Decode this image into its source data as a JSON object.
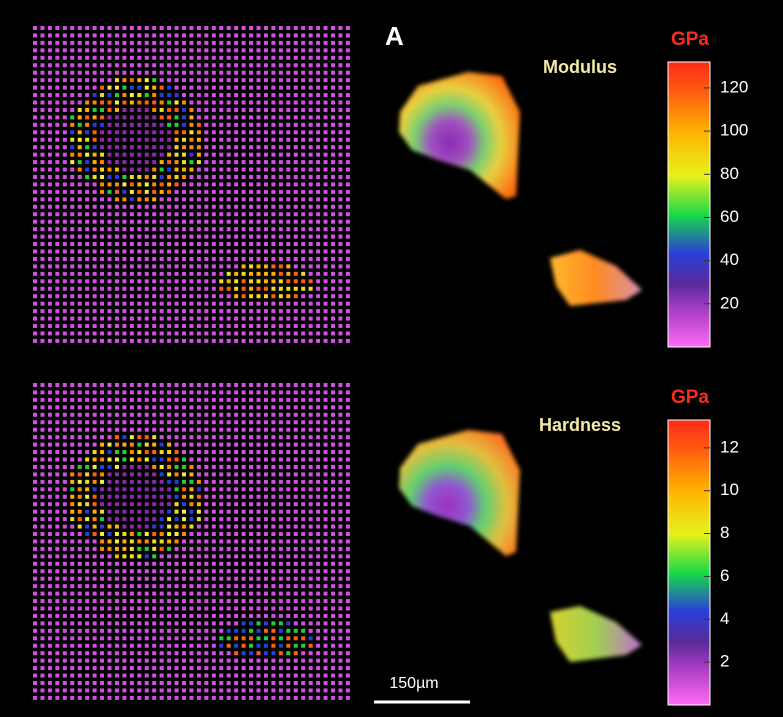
{
  "panel_label": "A",
  "scale_bar": "150µm",
  "maps": [
    {
      "title": "Modulus",
      "unit": "GPa",
      "range": [
        0,
        132
      ],
      "ticks": [
        20,
        40,
        60,
        80,
        100,
        120
      ]
    },
    {
      "title": "Hardness",
      "unit": "GPa",
      "range": [
        0,
        13.3
      ],
      "ticks": [
        2,
        4,
        6,
        8,
        10,
        12
      ]
    }
  ]
}
